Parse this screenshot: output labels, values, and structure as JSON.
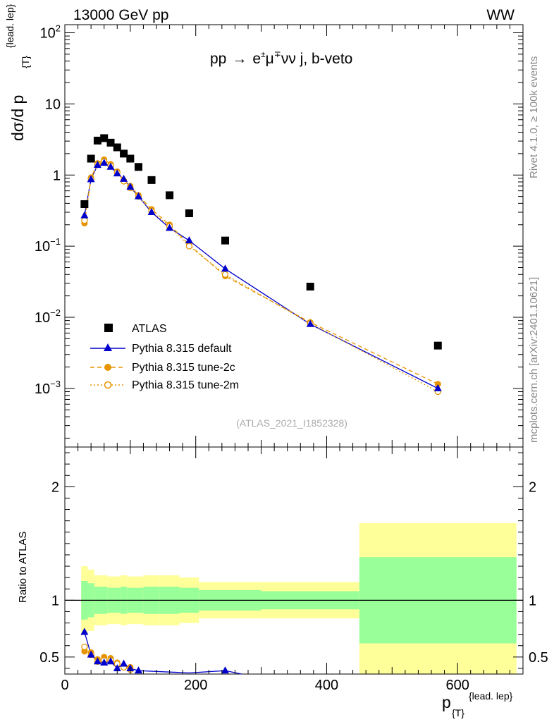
{
  "header": {
    "left": "13000 GeV pp",
    "right": "WW"
  },
  "side": {
    "rivet": "Rivet 4.1.0, ≥ 100k events",
    "mcplots": "mcplots.cern.ch [arXiv:2401.10621]"
  },
  "colors": {
    "atlas": "#000000",
    "default": "#0000cc",
    "tune2c": "#e69500",
    "tune2m": "#e69500",
    "band_inner": "#99ff99",
    "band_outer": "#ffff99"
  },
  "chart_data": [
    {
      "type": "scatter",
      "title": "pp → e±μ∓νν j, b-veto",
      "title_parts": {
        "pp": "pp",
        "arrow": "→",
        "e": "e",
        "pm": "±",
        "mu": "μ",
        "mp": "∓",
        "rest": "νν j, b-veto"
      },
      "watermark": "(ATLAS_2021_I1852328)",
      "ylabel_main": "dσ/d p",
      "ylabel_sub": "{T}",
      "ylabel_sup": "{lead. lep}",
      "yscale": "log",
      "ylim": [
        0.00015,
        130
      ],
      "xlim": [
        0,
        700
      ],
      "yticks": [
        {
          "base": "10",
          "exp": "2",
          "value": 100
        },
        {
          "base": "10",
          "exp": "",
          "value": 10
        },
        {
          "base": "1",
          "exp": "",
          "value": 1
        },
        {
          "base": "10",
          "exp": "−1",
          "value": 0.1
        },
        {
          "base": "10",
          "exp": "−2",
          "value": 0.01
        },
        {
          "base": "10",
          "exp": "−3",
          "value": 0.001
        }
      ],
      "legend_position": "bottom-left",
      "series": [
        {
          "name": "ATLAS",
          "style": "black-square",
          "x": [
            30,
            40,
            50,
            60,
            70,
            80,
            90,
            100,
            112.5,
            132.5,
            160,
            190,
            245,
            375,
            570
          ],
          "y": [
            0.39,
            1.7,
            3.05,
            3.3,
            2.85,
            2.45,
            2.0,
            1.7,
            1.3,
            0.85,
            0.52,
            0.29,
            0.12,
            0.027,
            0.004
          ]
        },
        {
          "name": "Pythia 8.315 default",
          "style": "blue-triangle-line",
          "x": [
            30,
            40,
            50,
            60,
            70,
            80,
            90,
            100,
            112.5,
            132.5,
            160,
            190,
            245,
            375,
            570
          ],
          "y": [
            0.27,
            0.87,
            1.38,
            1.48,
            1.3,
            1.05,
            0.88,
            0.68,
            0.5,
            0.3,
            0.18,
            0.12,
            0.048,
            0.008,
            0.001
          ]
        },
        {
          "name": "Pythia 8.315 tune-2c",
          "style": "orange-filled-circle-dashed",
          "x": [
            30,
            40,
            50,
            60,
            70,
            80,
            90,
            100,
            112.5,
            132.5,
            160,
            190,
            245,
            375,
            570
          ],
          "y": [
            0.21,
            0.92,
            1.46,
            1.65,
            1.42,
            1.12,
            0.84,
            0.7,
            0.52,
            0.33,
            0.2,
            0.105,
            0.038,
            0.0085,
            0.00115
          ]
        },
        {
          "name": "Pythia 8.315 tune-2m",
          "style": "orange-open-circle-dotted",
          "x": [
            30,
            40,
            50,
            60,
            70,
            80,
            90,
            100,
            112.5,
            132.5,
            160,
            190,
            245,
            375,
            570
          ],
          "y": [
            0.23,
            0.88,
            1.4,
            1.55,
            1.35,
            1.08,
            0.82,
            0.66,
            0.5,
            0.31,
            0.19,
            0.1,
            0.04,
            0.0082,
            0.0009
          ]
        }
      ]
    },
    {
      "type": "scatter",
      "title": "Ratio",
      "ylabel": "Ratio to ATLAS",
      "xlabel_main": "p",
      "xlabel_sub": "{T}",
      "xlabel_sup": "{lead. lep}",
      "xlim": [
        0,
        700
      ],
      "ylim": [
        0.35,
        2.35
      ],
      "xticks": [
        "0",
        "200",
        "400",
        "600"
      ],
      "xtick_values": [
        0,
        200,
        400,
        600
      ],
      "yticks": [
        "0.5",
        "1",
        "2"
      ],
      "ytick_values": [
        0.5,
        1,
        2
      ],
      "bins": [
        {
          "lo": 25,
          "hi": 35,
          "inner": 0.17,
          "outer": 0.3
        },
        {
          "lo": 35,
          "hi": 45,
          "inner": 0.15,
          "outer": 0.27
        },
        {
          "lo": 45,
          "hi": 55,
          "inner": 0.12,
          "outer": 0.22
        },
        {
          "lo": 55,
          "hi": 65,
          "inner": 0.12,
          "outer": 0.22
        },
        {
          "lo": 65,
          "hi": 75,
          "inner": 0.11,
          "outer": 0.21
        },
        {
          "lo": 75,
          "hi": 85,
          "inner": 0.11,
          "outer": 0.21
        },
        {
          "lo": 85,
          "hi": 95,
          "inner": 0.12,
          "outer": 0.22
        },
        {
          "lo": 95,
          "hi": 105,
          "inner": 0.11,
          "outer": 0.21
        },
        {
          "lo": 105,
          "hi": 120,
          "inner": 0.11,
          "outer": 0.21
        },
        {
          "lo": 120,
          "hi": 145,
          "inner": 0.12,
          "outer": 0.22
        },
        {
          "lo": 145,
          "hi": 175,
          "inner": 0.12,
          "outer": 0.22
        },
        {
          "lo": 175,
          "hi": 205,
          "inner": 0.11,
          "outer": 0.2
        },
        {
          "lo": 205,
          "hi": 300,
          "inner": 0.09,
          "outer": 0.16
        },
        {
          "lo": 300,
          "hi": 450,
          "inner": 0.08,
          "outer": 0.16
        },
        {
          "lo": 450,
          "hi": 690,
          "inner": 0.38,
          "outer": 0.68
        }
      ],
      "series": [
        {
          "name": "Pythia 8.315 default",
          "x": [
            30,
            40,
            50,
            60,
            70,
            80,
            90,
            100,
            112.5,
            190,
            245,
            270
          ],
          "y": [
            0.72,
            0.52,
            0.46,
            0.45,
            0.46,
            0.4,
            0.44,
            0.4,
            0.38,
            0.36,
            0.38,
            0.34
          ]
        },
        {
          "name": "Pythia 8.315 tune-2c",
          "x": [
            30,
            40,
            50,
            60,
            70,
            80,
            90,
            100
          ],
          "y": [
            0.55,
            0.54,
            0.48,
            0.5,
            0.49,
            0.45,
            0.42,
            0.41
          ]
        },
        {
          "name": "Pythia 8.315 tune-2m",
          "x": [
            30,
            40,
            50,
            60,
            70,
            80,
            90,
            100
          ],
          "y": [
            0.59,
            0.52,
            0.46,
            0.47,
            0.47,
            0.44,
            0.41,
            0.39
          ]
        }
      ]
    }
  ]
}
